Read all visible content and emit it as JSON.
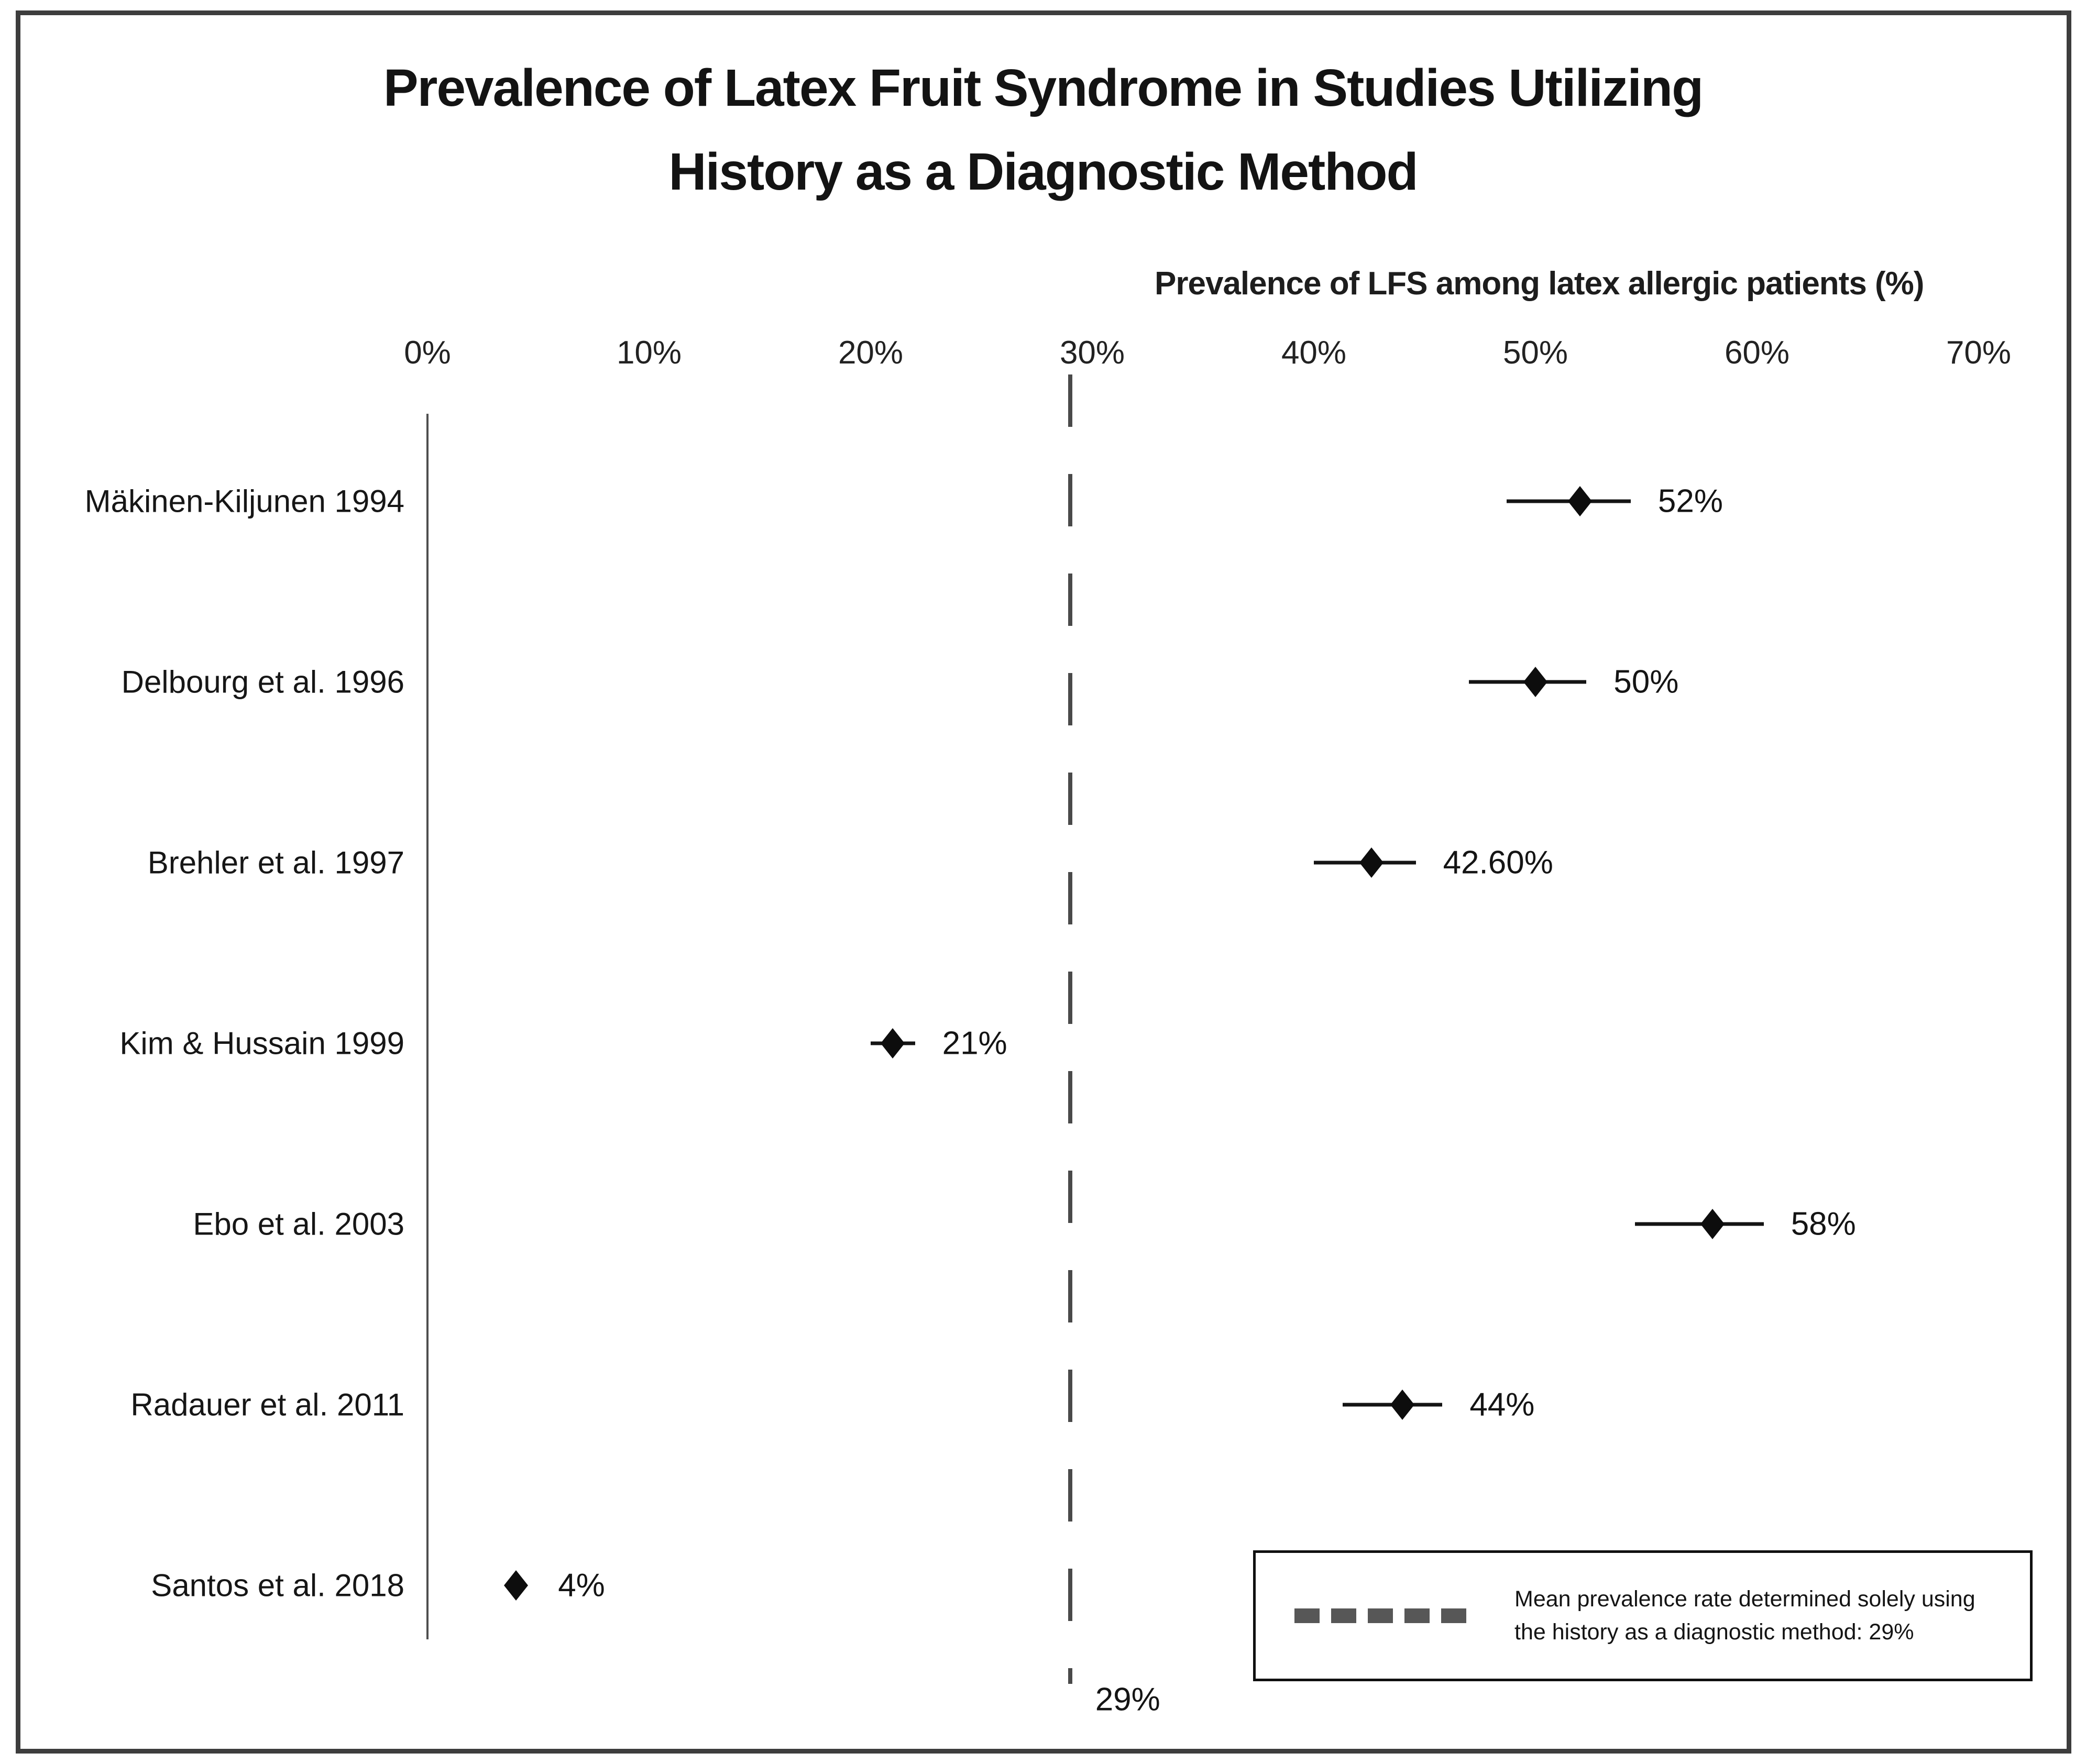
{
  "title": {
    "line1": "Prevalence of Latex Fruit Syndrome in Studies Utilizing",
    "line2": "History as a Diagnostic Method"
  },
  "chart_data": {
    "type": "scatter",
    "subtype": "forest-dot-plot",
    "title": "Prevalence of Latex Fruit Syndrome in Studies Utilizing History as a Diagnostic Method",
    "xlabel": "Prevalence of LFS among latex allergic patients (%)",
    "xlim": [
      0,
      70
    ],
    "grid": false,
    "ticks": [
      {
        "pct": 0,
        "label": "0%"
      },
      {
        "pct": 10,
        "label": "10%"
      },
      {
        "pct": 20,
        "label": "20%"
      },
      {
        "pct": 30,
        "label": "30%"
      },
      {
        "pct": 40,
        "label": "40%"
      },
      {
        "pct": 50,
        "label": "50%"
      },
      {
        "pct": 60,
        "label": "60%"
      },
      {
        "pct": 70,
        "label": "70%"
      }
    ],
    "series": [
      {
        "study": "Mäkinen-Kiljunen 1994",
        "value_pct": 52,
        "ci_low_pct": 48.7,
        "ci_high_pct": 54.3,
        "label": "52%"
      },
      {
        "study": "Delbourg et al. 1996",
        "value_pct": 50,
        "ci_low_pct": 47.0,
        "ci_high_pct": 52.3,
        "label": "50%"
      },
      {
        "study": "Brehler et al. 1997",
        "value_pct": 42.6,
        "ci_low_pct": 40.0,
        "ci_high_pct": 44.6,
        "label": "42.60%"
      },
      {
        "study": "Kim & Hussain 1999",
        "value_pct": 21,
        "ci_low_pct": 20.0,
        "ci_high_pct": 22.0,
        "label": "21%"
      },
      {
        "study": "Ebo et al. 2003",
        "value_pct": 58,
        "ci_low_pct": 54.5,
        "ci_high_pct": 60.3,
        "label": "58%"
      },
      {
        "study": "Radauer et al. 2011",
        "value_pct": 44,
        "ci_low_pct": 41.3,
        "ci_high_pct": 45.8,
        "label": "44%"
      },
      {
        "study": "Santos et al. 2018",
        "value_pct": 4,
        "ci_low_pct": 4,
        "ci_high_pct": 4,
        "label": "4%"
      }
    ],
    "mean_line": {
      "value_pct": 29,
      "bottom_label": "29%",
      "style": "dashed",
      "color": "#4a4a4a"
    },
    "legend_position": "bottom-right",
    "marker": {
      "shape": "diamond",
      "color": "#0d0d0d"
    }
  },
  "legend": {
    "text_line1": "Mean prevalence rate determined solely using",
    "text_line2": "the history as a diagnostic method: 29%"
  },
  "colors": {
    "frame_border": "#3d3d3d",
    "axis_line": "#4f4f4f",
    "dashed_line": "#4a4a4a",
    "marker": "#0d0d0d",
    "text": "#141414"
  }
}
